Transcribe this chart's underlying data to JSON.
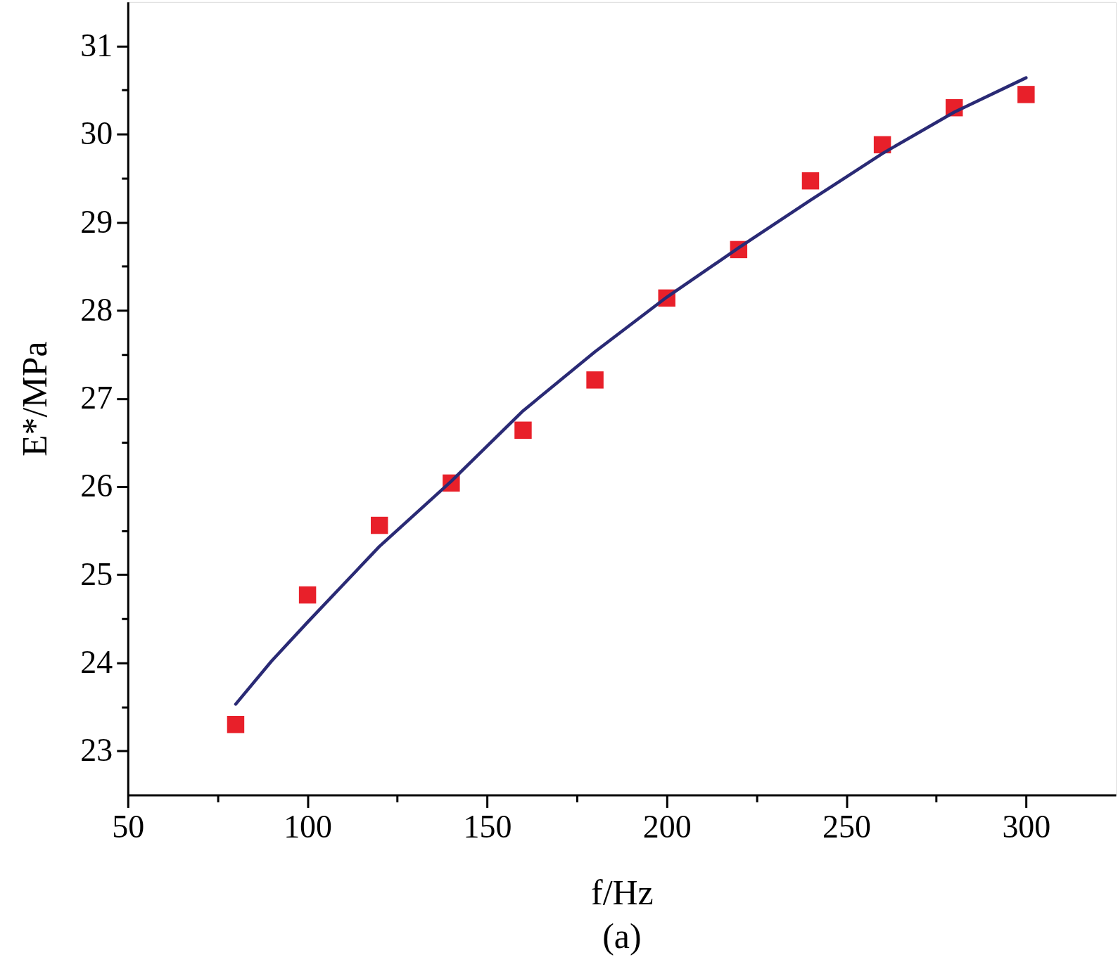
{
  "chart_data": {
    "type": "scatter",
    "xlabel": "f/Hz",
    "ylabel": "E*/MPa",
    "annotations": [
      "(a)"
    ],
    "xlim": [
      50,
      325
    ],
    "ylim": [
      22.5,
      31.5
    ],
    "xticks": [
      50,
      {
        "value": 75,
        "label": null
      },
      100,
      {
        "value": 125,
        "label": null
      },
      150,
      {
        "value": 175,
        "label": null
      },
      200,
      {
        "value": 225,
        "label": null
      },
      250,
      {
        "value": 275,
        "label": null
      },
      300
    ],
    "yticks": [
      23,
      {
        "value": 23.5,
        "label": null
      },
      24,
      {
        "value": 24.5,
        "label": null
      },
      25,
      {
        "value": 25.5,
        "label": null
      },
      26,
      {
        "value": 26.5,
        "label": null
      },
      27,
      {
        "value": 27.5,
        "label": null
      },
      28,
      {
        "value": 28.5,
        "label": null
      },
      29,
      {
        "value": 29.5,
        "label": null
      },
      30,
      {
        "value": 30.5,
        "label": null
      },
      31
    ],
    "series": [
      {
        "marker": "square",
        "color": "#e8202a",
        "x": [
          80,
          100,
          120,
          140,
          160,
          180,
          200,
          220,
          240,
          260,
          280,
          300
        ],
        "values": [
          23.3,
          24.77,
          25.56,
          26.04,
          26.64,
          27.21,
          28.14,
          28.69,
          29.47,
          29.88,
          30.3,
          30.45
        ]
      },
      {
        "type": "line",
        "marker": "none",
        "line_style": "solid",
        "color": "#2a2a75",
        "x": [
          80,
          90,
          100,
          110,
          120,
          140,
          160,
          180,
          200,
          220,
          240,
          260,
          280,
          300
        ],
        "values": [
          23.53,
          24.02,
          24.46,
          24.89,
          25.32,
          26.06,
          26.86,
          27.53,
          28.15,
          28.71,
          29.25,
          29.78,
          30.25,
          30.64
        ]
      }
    ]
  }
}
